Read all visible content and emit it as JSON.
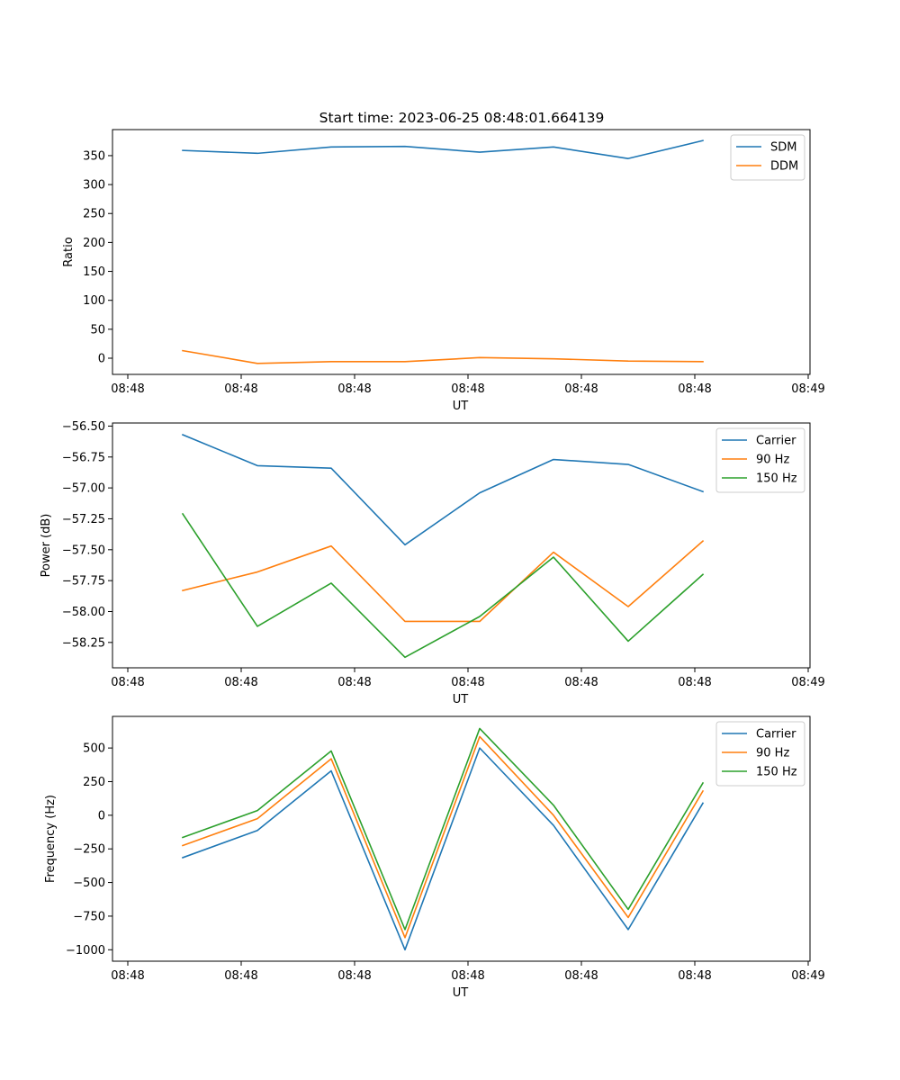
{
  "figure_title": "Start time: 2023-06-25 08:48:01.664139",
  "chart_data": [
    {
      "type": "line",
      "title": "Start time: 2023-06-25 08:48:01.664139",
      "xlabel": "UT",
      "ylabel": "Ratio",
      "x_tick_labels": [
        "08:48",
        "08:48",
        "08:48",
        "08:48",
        "08:48",
        "08:48",
        "08:49"
      ],
      "y_ticks": [
        0,
        50,
        100,
        150,
        200,
        250,
        300,
        350
      ],
      "y_tick_labels": [
        "0",
        "50",
        "100",
        "150",
        "200",
        "250",
        "300",
        "350"
      ],
      "ylim": [
        -28,
        395
      ],
      "legend_position": "upper-right",
      "grid": false,
      "series": [
        {
          "name": "SDM",
          "color": "#1f77b4",
          "values": [
            359,
            354,
            365,
            366,
            356,
            365,
            345,
            376
          ]
        },
        {
          "name": "DDM",
          "color": "#ff7f0e",
          "values": [
            13,
            -9,
            -6,
            -6,
            1,
            -1,
            -5,
            -6
          ]
        }
      ]
    },
    {
      "type": "line",
      "title": "",
      "xlabel": "UT",
      "ylabel": "Power (dB)",
      "x_tick_labels": [
        "08:48",
        "08:48",
        "08:48",
        "08:48",
        "08:48",
        "08:48",
        "08:49"
      ],
      "y_ticks": [
        -56.5,
        -56.75,
        -57.0,
        -57.25,
        -57.5,
        -57.75,
        -58.0,
        -58.25
      ],
      "y_tick_labels": [
        "−56.50",
        "−56.75",
        "−57.00",
        "−57.25",
        "−57.50",
        "−57.75",
        "−58.00",
        "−58.25"
      ],
      "ylim": [
        -58.455,
        -56.475
      ],
      "legend_position": "upper-right",
      "grid": false,
      "series": [
        {
          "name": "Carrier",
          "color": "#1f77b4",
          "values": [
            -56.57,
            -56.82,
            -56.84,
            -57.46,
            -57.04,
            -56.77,
            -56.81,
            -57.03
          ]
        },
        {
          "name": "90 Hz",
          "color": "#ff7f0e",
          "values": [
            -57.83,
            -57.68,
            -57.47,
            -58.08,
            -58.08,
            -57.52,
            -57.96,
            -57.43
          ]
        },
        {
          "name": "150 Hz",
          "color": "#2ca02c",
          "values": [
            -57.21,
            -58.12,
            -57.77,
            -58.37,
            -58.04,
            -57.56,
            -58.24,
            -57.7
          ]
        }
      ]
    },
    {
      "type": "line",
      "title": "",
      "xlabel": "UT",
      "ylabel": "Frequency (Hz)",
      "x_tick_labels": [
        "08:48",
        "08:48",
        "08:48",
        "08:48",
        "08:48",
        "08:48",
        "08:49"
      ],
      "y_ticks": [
        500,
        250,
        0,
        -250,
        -500,
        -750,
        -1000
      ],
      "y_tick_labels": [
        "500",
        "250",
        "0",
        "−250",
        "−500",
        "−750",
        "−1000"
      ],
      "ylim": [
        -1085,
        735
      ],
      "legend_position": "upper-right",
      "grid": false,
      "series": [
        {
          "name": "Carrier",
          "color": "#1f77b4",
          "values": [
            -315,
            -113,
            330,
            -1000,
            500,
            -75,
            -850,
            90
          ]
        },
        {
          "name": "90 Hz",
          "color": "#ff7f0e",
          "values": [
            -225,
            -25,
            420,
            -910,
            585,
            0,
            -760,
            180
          ]
        },
        {
          "name": "150 Hz",
          "color": "#2ca02c",
          "values": [
            -165,
            35,
            478,
            -850,
            645,
            75,
            -700,
            240
          ]
        }
      ]
    }
  ]
}
